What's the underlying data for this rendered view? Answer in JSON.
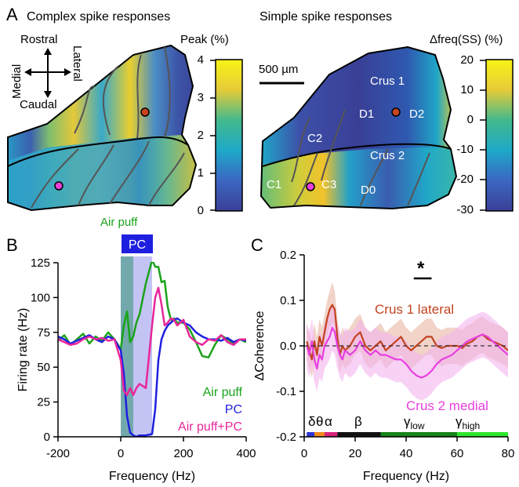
{
  "panel_a": {
    "letter": "A",
    "cs_title": "Complex spike responses",
    "ss_title": "Simple spike responses",
    "directions": {
      "rostral": "Rostral",
      "caudal": "Caudal",
      "medial": "Medial",
      "lateral": "Lateral"
    },
    "scale_bar": "500 µm",
    "cs_colorbar": {
      "title": "Peak (%)",
      "ticks": [
        "4",
        "3",
        "2",
        "1",
        "0"
      ]
    },
    "ss_colorbar": {
      "title": "Δfreq(SS) (%)",
      "ticks": [
        "20",
        "10",
        "0",
        "-10",
        "-20",
        "-30"
      ]
    },
    "regions": {
      "crus1": "Crus 1",
      "crus2": "Crus 2",
      "d1": "D1",
      "d2": "D2",
      "c2": "C2",
      "c1": "C1",
      "c3": "C3",
      "d0": "D0"
    },
    "marker_colors": {
      "lateral": "#c8441e",
      "medial": "#e83fd8"
    }
  },
  "panel_b": {
    "letter": "B",
    "stim_label": "Air puff",
    "pc_box": "PC",
    "legend": [
      "Air puff",
      "PC",
      "Air puff+PC"
    ],
    "colors": {
      "air_puff": "#1aa31a",
      "pc": "#1f1fe0",
      "both": "#e8269a"
    }
  },
  "panel_c": {
    "letter": "C",
    "significance": "*",
    "labels": {
      "crus1": "Crus 1 lateral",
      "crus2": "Crus 2 medial"
    },
    "colors": {
      "crus1": "#c2431f",
      "crus2": "#e83fe0"
    },
    "bands": [
      {
        "label": "δ",
        "sub": "",
        "from": 1,
        "to": 4,
        "color": "#2d36d6"
      },
      {
        "label": "θ",
        "sub": "",
        "from": 4,
        "to": 8,
        "color": "#f08a1c"
      },
      {
        "label": "α",
        "sub": "",
        "from": 8,
        "to": 13,
        "color": "#d8237a"
      },
      {
        "label": "β",
        "sub": "",
        "from": 13,
        "to": 30,
        "color": "#111111"
      },
      {
        "label": "γ",
        "sub": "low",
        "from": 30,
        "to": 60,
        "color": "#15841a"
      },
      {
        "label": "γ",
        "sub": "high",
        "from": 60,
        "to": 80,
        "color": "#2ee52e"
      }
    ]
  },
  "chart_data": [
    {
      "type": "line",
      "panel": "B",
      "xlabel": "Frequency (Hz)",
      "ylabel": "Firing rate (Hz)",
      "xlim": [
        -200,
        400
      ],
      "ylim": [
        0,
        125
      ],
      "xticks": [
        "-200",
        "0",
        "200",
        "400"
      ],
      "yticks": [
        "0",
        "25",
        "50",
        "75",
        "100",
        "125"
      ],
      "shaded_regions": [
        {
          "from": 0,
          "to": 40,
          "color": "#5a9a9e"
        },
        {
          "from": 40,
          "to": 100,
          "color": "#b8b8f2"
        }
      ],
      "series": [
        {
          "name": "Air puff",
          "color": "#1aa31a",
          "x": [
            -200,
            -180,
            -160,
            -140,
            -120,
            -100,
            -80,
            -60,
            -40,
            -20,
            0,
            10,
            20,
            30,
            40,
            50,
            60,
            80,
            100,
            110,
            120,
            130,
            140,
            150,
            160,
            170,
            180,
            200,
            220,
            240,
            260,
            280,
            300,
            320,
            340,
            360,
            380,
            400
          ],
          "y": [
            69,
            73,
            66,
            70,
            74,
            67,
            72,
            69,
            75,
            70,
            63,
            80,
            90,
            68,
            72,
            82,
            88,
            110,
            127,
            122,
            122,
            111,
            112,
            93,
            84,
            85,
            82,
            82,
            77,
            68,
            58,
            57,
            66,
            73,
            70,
            67,
            70,
            68
          ]
        },
        {
          "name": "PC",
          "color": "#1f1fe0",
          "x": [
            -200,
            -180,
            -160,
            -140,
            -120,
            -100,
            -80,
            -60,
            -40,
            -20,
            0,
            10,
            20,
            30,
            40,
            50,
            60,
            80,
            100,
            110,
            120,
            130,
            140,
            150,
            160,
            170,
            180,
            200,
            220,
            240,
            260,
            280,
            300,
            320,
            340,
            360,
            380,
            400
          ],
          "y": [
            72,
            70,
            67,
            69,
            71,
            73,
            70,
            68,
            72,
            70,
            62,
            45,
            15,
            3,
            1,
            0,
            1,
            1,
            2,
            20,
            55,
            70,
            76,
            80,
            82,
            84,
            85,
            82,
            80,
            75,
            72,
            70,
            70,
            69,
            71,
            68,
            70,
            69
          ]
        },
        {
          "name": "Air puff+PC",
          "color": "#e8269a",
          "x": [
            -200,
            -180,
            -160,
            -140,
            -120,
            -100,
            -80,
            -60,
            -40,
            -20,
            0,
            10,
            20,
            30,
            40,
            50,
            60,
            80,
            100,
            110,
            120,
            130,
            140,
            150,
            160,
            170,
            180,
            200,
            220,
            240,
            260,
            280,
            300,
            320,
            340,
            360,
            380,
            400
          ],
          "y": [
            70,
            68,
            66,
            67,
            70,
            72,
            70,
            71,
            69,
            70,
            55,
            33,
            30,
            35,
            30,
            35,
            38,
            35,
            80,
            100,
            107,
            95,
            80,
            82,
            85,
            84,
            80,
            84,
            72,
            68,
            66,
            70,
            69,
            73,
            68,
            66,
            70,
            70
          ]
        }
      ]
    },
    {
      "type": "line",
      "panel": "C",
      "xlabel": "Frequency (Hz)",
      "ylabel": "ΔCoherence",
      "xlim": [
        0,
        80
      ],
      "ylim": [
        -0.2,
        0.2
      ],
      "xticks": [
        "0",
        "20",
        "40",
        "60",
        "80"
      ],
      "yticks": [
        "-0.2",
        "-0.1",
        "0.0",
        "0.1",
        "0.2"
      ],
      "zero_line": 0,
      "significance_bar": {
        "from": 43,
        "to": 50
      },
      "series": [
        {
          "name": "Crus 1 lateral",
          "color": "#c2431f",
          "x": [
            1,
            2,
            3,
            4,
            5,
            6,
            7,
            8,
            9,
            10,
            11,
            12,
            13,
            14,
            15,
            16,
            18,
            20,
            22,
            24,
            26,
            28,
            30,
            32,
            34,
            36,
            38,
            40,
            42,
            44,
            46,
            48,
            50,
            52,
            54,
            56,
            58,
            60,
            62,
            64,
            66,
            68,
            70,
            72,
            74,
            76,
            78,
            80
          ],
          "y": [
            0.01,
            -0.01,
            -0.03,
            0.01,
            -0.02,
            0.02,
            0.0,
            0.03,
            0.06,
            0.08,
            0.09,
            0.08,
            0.02,
            -0.02,
            0.0,
            -0.01,
            0.0,
            0.02,
            0.03,
            0.0,
            -0.01,
            0.0,
            0.01,
            -0.01,
            0.0,
            0.01,
            0.02,
            0.0,
            -0.01,
            0.0,
            0.01,
            0.02,
            0.02,
            0.0,
            -0.005,
            0.0,
            0.0,
            0.0,
            -0.005,
            0.005,
            0.01,
            0.02,
            0.025,
            0.015,
            0.01,
            0.005,
            0.0,
            -0.01
          ],
          "lower": [
            -0.03,
            -0.05,
            -0.07,
            -0.04,
            -0.06,
            -0.02,
            -0.04,
            -0.01,
            0.02,
            0.04,
            0.05,
            0.04,
            -0.02,
            -0.06,
            -0.04,
            -0.05,
            -0.04,
            -0.02,
            -0.01,
            -0.04,
            -0.05,
            -0.04,
            -0.03,
            -0.05,
            -0.04,
            -0.03,
            -0.02,
            -0.04,
            -0.05,
            -0.04,
            -0.03,
            -0.02,
            -0.02,
            -0.04,
            -0.045,
            -0.04,
            -0.04,
            -0.04,
            -0.045,
            -0.035,
            -0.03,
            -0.02,
            -0.015,
            -0.025,
            -0.03,
            -0.035,
            -0.04,
            -0.05
          ],
          "upper": [
            0.05,
            0.03,
            0.01,
            0.05,
            0.02,
            0.06,
            0.04,
            0.07,
            0.1,
            0.12,
            0.14,
            0.12,
            0.06,
            0.02,
            0.04,
            0.03,
            0.04,
            0.06,
            0.07,
            0.04,
            0.03,
            0.04,
            0.05,
            0.03,
            0.04,
            0.05,
            0.06,
            0.04,
            0.03,
            0.04,
            0.05,
            0.06,
            0.06,
            0.04,
            0.035,
            0.04,
            0.04,
            0.04,
            0.035,
            0.045,
            0.05,
            0.06,
            0.065,
            0.055,
            0.05,
            0.045,
            0.04,
            0.03
          ]
        },
        {
          "name": "Crus 2 medial",
          "color": "#e83fe0",
          "x": [
            1,
            2,
            3,
            4,
            5,
            6,
            7,
            8,
            9,
            10,
            11,
            12,
            13,
            14,
            15,
            16,
            18,
            20,
            22,
            24,
            26,
            28,
            30,
            32,
            34,
            36,
            38,
            40,
            42,
            44,
            46,
            48,
            50,
            52,
            54,
            56,
            58,
            60,
            62,
            64,
            66,
            68,
            70,
            72,
            74,
            76,
            78,
            80
          ],
          "y": [
            0.0,
            -0.02,
            0.01,
            -0.03,
            -0.05,
            -0.02,
            -0.03,
            0.0,
            0.01,
            0.02,
            0.04,
            0.03,
            0.0,
            -0.02,
            -0.03,
            -0.01,
            -0.02,
            -0.01,
            0.01,
            -0.01,
            -0.02,
            -0.01,
            -0.02,
            -0.02,
            -0.025,
            -0.03,
            -0.03,
            -0.04,
            -0.055,
            -0.065,
            -0.07,
            -0.065,
            -0.055,
            -0.04,
            -0.03,
            -0.025,
            -0.02,
            -0.01,
            0.0,
            0.01,
            0.015,
            0.02,
            0.025,
            0.02,
            0.01,
            0.0,
            -0.01,
            -0.02
          ],
          "lower": [
            -0.05,
            -0.07,
            -0.04,
            -0.08,
            -0.1,
            -0.07,
            -0.08,
            -0.05,
            -0.04,
            -0.03,
            -0.01,
            -0.02,
            -0.05,
            -0.07,
            -0.08,
            -0.06,
            -0.07,
            -0.06,
            -0.04,
            -0.06,
            -0.07,
            -0.06,
            -0.07,
            -0.07,
            -0.075,
            -0.08,
            -0.08,
            -0.09,
            -0.105,
            -0.115,
            -0.12,
            -0.115,
            -0.105,
            -0.09,
            -0.08,
            -0.075,
            -0.07,
            -0.06,
            -0.05,
            -0.04,
            -0.035,
            -0.03,
            -0.025,
            -0.03,
            -0.04,
            -0.05,
            -0.06,
            -0.07
          ],
          "upper": [
            0.05,
            0.03,
            0.06,
            0.02,
            0.0,
            0.03,
            0.02,
            0.05,
            0.06,
            0.07,
            0.09,
            0.08,
            0.05,
            0.03,
            0.02,
            0.04,
            0.03,
            0.04,
            0.06,
            0.04,
            0.03,
            0.04,
            0.03,
            0.03,
            0.025,
            0.02,
            0.02,
            0.01,
            -0.005,
            -0.015,
            -0.02,
            -0.015,
            -0.005,
            0.01,
            0.02,
            0.025,
            0.03,
            0.04,
            0.05,
            0.06,
            0.065,
            0.07,
            0.075,
            0.07,
            0.06,
            0.05,
            0.04,
            0.03
          ]
        }
      ]
    }
  ]
}
